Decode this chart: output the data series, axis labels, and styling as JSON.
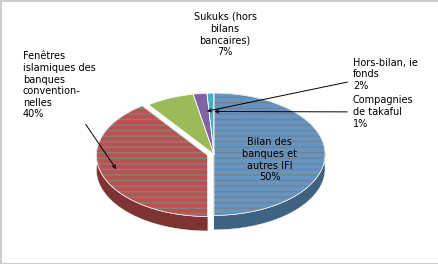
{
  "slices": [
    {
      "label": "Bilan des\nbanques et\nautres IFI\n50%",
      "value": 50,
      "color": "#6096C8",
      "hatch": "---",
      "explode": 0.0
    },
    {
      "label": "Fenêtres\nislamiques des\nbanques\nconvention-\nnelles\n40%",
      "value": 40,
      "color": "#C0504D",
      "hatch": "---",
      "explode": 0.06
    },
    {
      "label": "Sukuks (hors\nbilans\nbancaires)\n7%",
      "value": 7,
      "color": "#9BBB59",
      "hatch": "",
      "explode": 0.0
    },
    {
      "label": "Hors-bilan, ie\nfonds\n2%",
      "value": 2,
      "color": "#8064A2",
      "hatch": "",
      "explode": 0.0
    },
    {
      "label": "Compagnies\nde takaful\n1%",
      "value": 1,
      "color": "#4BACC6",
      "hatch": "",
      "explode": 0.0
    }
  ],
  "start_angle": 90,
  "figsize": [
    4.39,
    2.64
  ],
  "dpi": 100,
  "background_color": "#FFFFFF",
  "font_size": 7
}
